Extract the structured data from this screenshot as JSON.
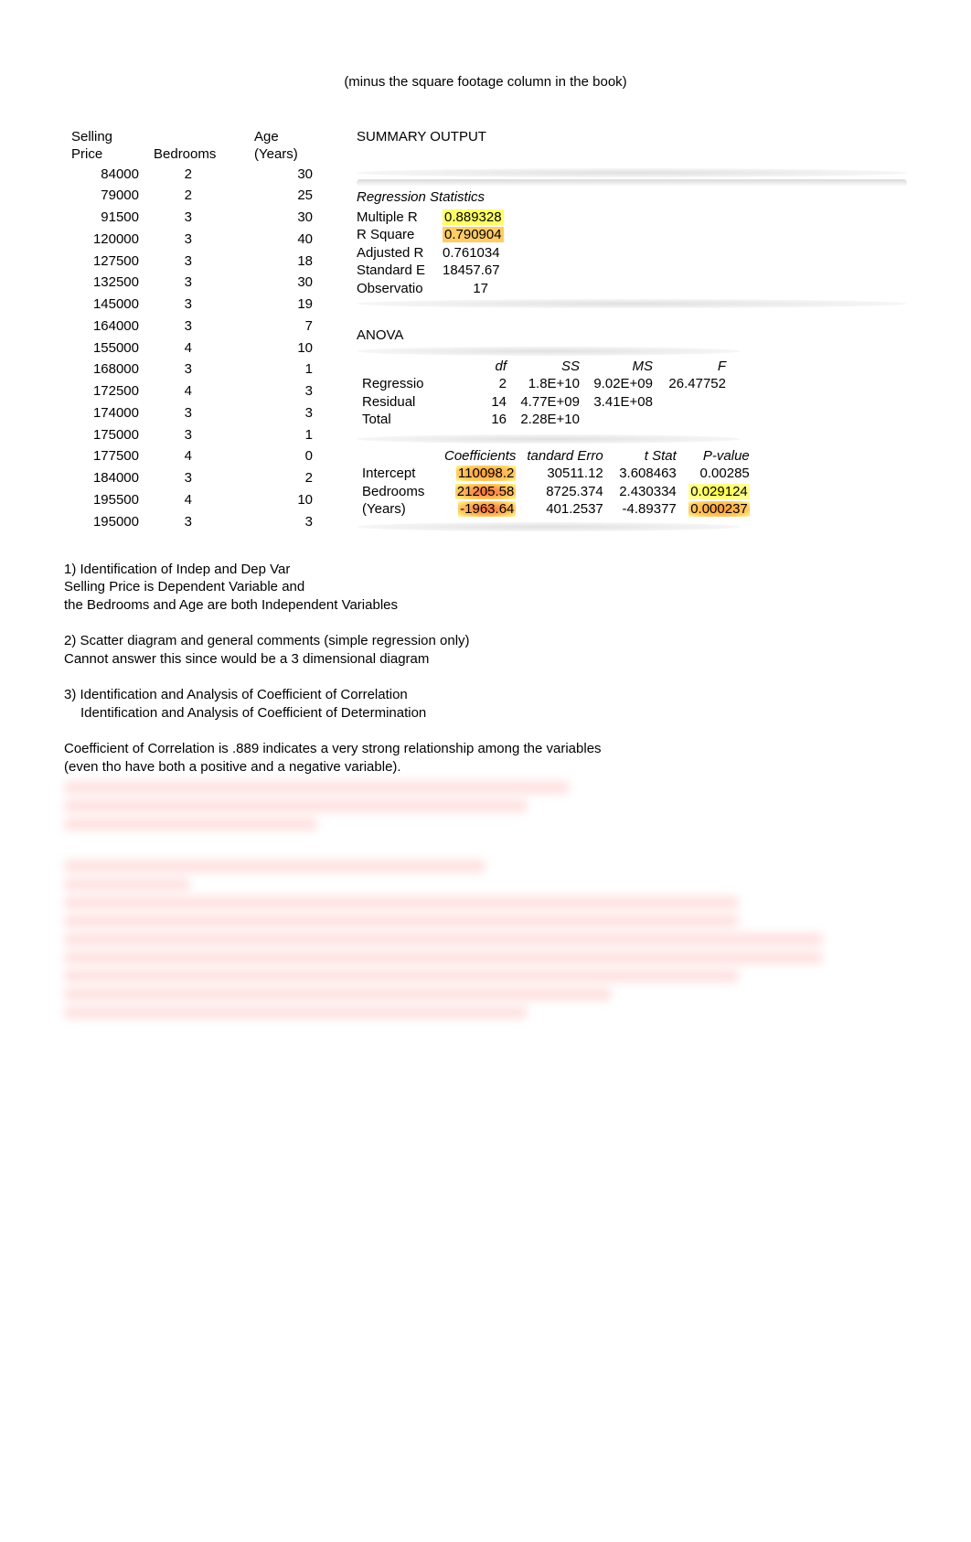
{
  "subtitle": "(minus the square footage column in the book)",
  "columns": {
    "price_l1": "Selling",
    "price_l2": "Price",
    "bedrooms": "Bedrooms",
    "age_l1": "Age",
    "age_l2": "(Years)"
  },
  "rows": [
    {
      "price": "84000",
      "bed": "2",
      "age": "30"
    },
    {
      "price": "79000",
      "bed": "2",
      "age": "25"
    },
    {
      "price": "91500",
      "bed": "3",
      "age": "30"
    },
    {
      "price": "120000",
      "bed": "3",
      "age": "40"
    },
    {
      "price": "127500",
      "bed": "3",
      "age": "18"
    },
    {
      "price": "132500",
      "bed": "3",
      "age": "30"
    },
    {
      "price": "145000",
      "bed": "3",
      "age": "19"
    },
    {
      "price": "164000",
      "bed": "3",
      "age": "7"
    },
    {
      "price": "155000",
      "bed": "4",
      "age": "10"
    },
    {
      "price": "168000",
      "bed": "3",
      "age": "1"
    },
    {
      "price": "172500",
      "bed": "4",
      "age": "3"
    },
    {
      "price": "174000",
      "bed": "3",
      "age": "3"
    },
    {
      "price": "175000",
      "bed": "3",
      "age": "1"
    },
    {
      "price": "177500",
      "bed": "4",
      "age": "0"
    },
    {
      "price": "184000",
      "bed": "3",
      "age": "2"
    },
    {
      "price": "195500",
      "bed": "4",
      "age": "10"
    },
    {
      "price": "195000",
      "bed": "3",
      "age": "3"
    }
  ],
  "summary": {
    "title": "SUMMARY OUTPUT",
    "reg_stats_label": "Regression Statistics",
    "multiple_r_label": "Multiple R",
    "multiple_r": "0.889328",
    "r_square_label": "R Square",
    "r_square": "0.790904",
    "adj_r_label": "Adjusted R",
    "adj_r": "0.761034",
    "std_err_label": "Standard E",
    "std_err": "18457.67",
    "obs_label": "Observatio",
    "obs": "17"
  },
  "anova": {
    "title": "ANOVA",
    "headers": {
      "df": "df",
      "ss": "SS",
      "ms": "MS",
      "f": "F"
    },
    "regression": {
      "label": "Regressio",
      "df": "2",
      "ss": "1.8E+10",
      "ms": "9.02E+09",
      "f": "26.47752"
    },
    "residual": {
      "label": "Residual",
      "df": "14",
      "ss": "4.77E+09",
      "ms": "3.41E+08",
      "f": ""
    },
    "total": {
      "label": "Total",
      "df": "16",
      "ss": "2.28E+10",
      "ms": "",
      "f": ""
    }
  },
  "coef": {
    "headers": {
      "c": "Coefficients",
      "se": "tandard Erro",
      "t": "t Stat",
      "p": "P-value"
    },
    "intercept": {
      "label": "Intercept",
      "c": "110098.2",
      "se": "30511.12",
      "t": "3.608463",
      "p": "0.00285"
    },
    "bedrooms": {
      "label": "Bedrooms",
      "c": "21205.58",
      "se": "8725.374",
      "t": "2.430334",
      "p": "0.029124"
    },
    "years": {
      "label": "(Years)",
      "c": "-1963.64",
      "se": "401.2537",
      "t": "-4.89377",
      "p": "0.000237"
    }
  },
  "notes": {
    "n1a": "1) Identification of Indep and Dep Var",
    "n1b": "Selling Price is Dependent Variable and",
    "n1c": "the Bedrooms and Age are both Independent Variables",
    "n2a": "2) Scatter diagram and general comments (simple regression only)",
    "n2b": "Cannot answer this since would be a 3 dimensional diagram",
    "n3a": "3) Identification and Analysis of Coefficient of Correlation",
    "n3b": "Identification and Analysis of Coefficient of Determination",
    "n4a": "Coefficient of Correlation is .889 indicates a very strong relationship among the variables",
    "n4b": " (even tho have both a positive and a negative variable)."
  },
  "colors": {
    "hl_yellow": "#ffff66",
    "hl_orange": "#ffcc66",
    "hl_red": "#ff6633",
    "text": "#000000",
    "bg": "#ffffff",
    "blur_tint": "#ffcccc"
  }
}
